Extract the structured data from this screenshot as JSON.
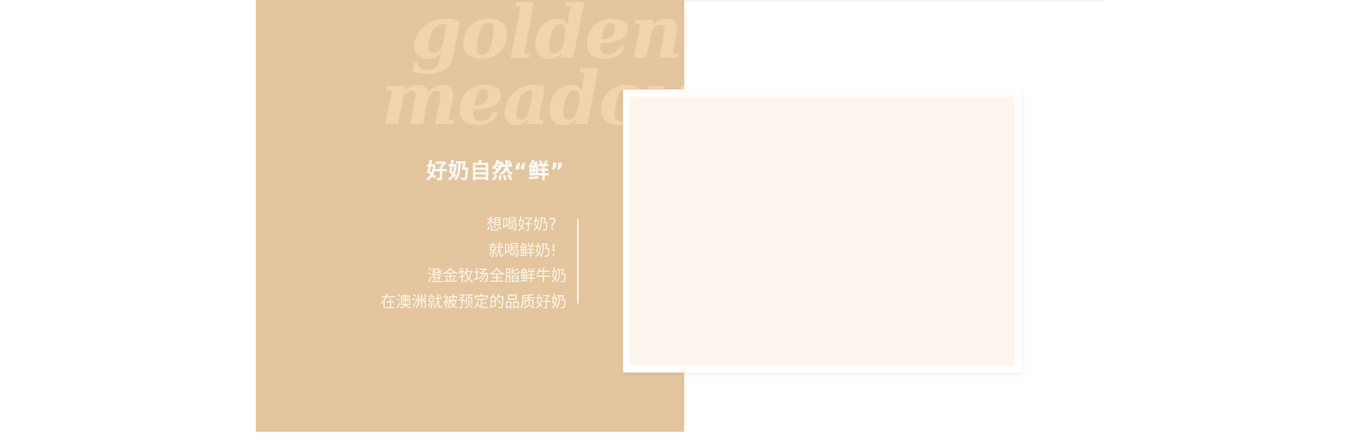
{
  "brand": {
    "script_line_1": "golden",
    "script_line_2": "meadow"
  },
  "hero": {
    "slogan": "好奶自然“鲜”",
    "taglines": [
      "想喝好奶?",
      "就喝鲜奶!",
      "澄金牧场全脂鲜牛奶",
      "在澳洲就被预定的品质好奶"
    ]
  },
  "colors": {
    "panel": "#e2c59c",
    "script_text": "#f0d5ad",
    "photo_fill": "#fdf5eb",
    "card_border": "#ffffff"
  }
}
